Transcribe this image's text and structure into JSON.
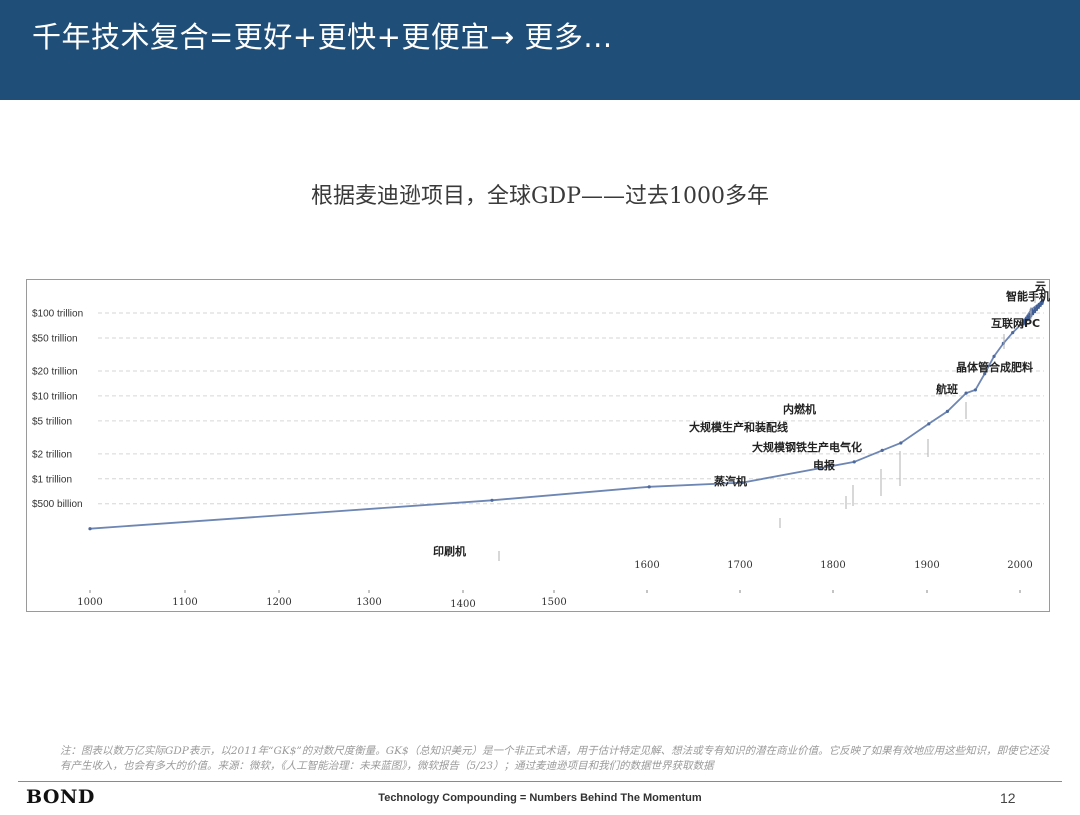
{
  "header": {
    "title": "千年技术复合=更好+更快+更便宜→  更多..."
  },
  "chart_title": "根据麦迪逊项目，全球GDP——过去1000多年",
  "chart_data": {
    "type": "line",
    "yscale": "log",
    "ylabel": "",
    "xlabel": "",
    "y_ticks": [
      {
        "value": 100,
        "label": "$100 trillion"
      },
      {
        "value": 50,
        "label": "$50 trillion"
      },
      {
        "value": 20,
        "label": "$20 trillion"
      },
      {
        "value": 10,
        "label": "$10 trillion"
      },
      {
        "value": 5,
        "label": "$5 trillion"
      },
      {
        "value": 2,
        "label": "$2 trillion"
      },
      {
        "value": 1,
        "label": "$1 trillion"
      },
      {
        "value": 0.5,
        "label": "$500 billion"
      }
    ],
    "x_ticks_lower": [
      "1000",
      "1100",
      "1200",
      "1300",
      "1400",
      "1500"
    ],
    "x_ticks_upper": [
      "1600",
      "1700",
      "1800",
      "1900",
      "2000"
    ],
    "grid": "dashed horizontal",
    "series": [
      {
        "color": "#6d86b4",
        "x": [
          1000,
          1500,
          1600,
          1700,
          1820,
          1850,
          1870,
          1900,
          1920,
          1940,
          1950,
          1960,
          1970,
          1980,
          1990,
          2000,
          2010,
          2022
        ],
        "y": [
          0.25,
          0.55,
          0.8,
          0.9,
          1.6,
          2.2,
          2.7,
          4.6,
          6.5,
          10.8,
          11.8,
          18.5,
          30,
          43,
          58,
          75,
          110,
          140
        ]
      }
    ],
    "annotations": [
      {
        "label": "印刷机",
        "year": 1440
      },
      {
        "label": "蒸汽机",
        "year": 1760
      },
      {
        "label": "电报",
        "year": 1837
      },
      {
        "label": "大规模钢铁生产电气化",
        "year": 1870
      },
      {
        "label": "大规模生产和装配线",
        "year": 1908
      },
      {
        "label": "内燃机",
        "year": 1886
      },
      {
        "label": "航班",
        "year": 1914
      },
      {
        "label": "晶体管合成肥料",
        "year": 1947
      },
      {
        "label": "互联网PC",
        "year": 1983
      },
      {
        "label": "智能手机",
        "year": 2007
      },
      {
        "label": "云",
        "year": 2006
      }
    ]
  },
  "footnote": "注：图表以数万亿实际GDP表示，以2011年“GK$”的对数尺度衡量。GK$（总知识美元）是一个非正式术语，用于估计特定见解、想法或专有知识的潜在商业价值。它反映了如果有效地应用这些知识，即使它还没有产生收入，也会有多大的价值。来源：微软，《人工智能治理：未来蓝图》，微软报告（5/23）；通过麦迪逊项目和我们的数据世界获取数据",
  "footer": {
    "brand": "BOND",
    "tagline": "Technology Compounding = Numbers Behind The Momentum",
    "page": "12"
  }
}
